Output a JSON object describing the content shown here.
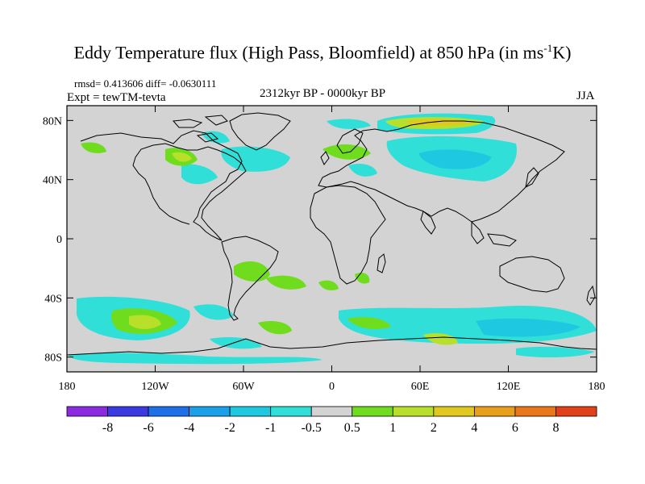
{
  "title_main": "Eddy Temperature flux (High Pass, Bloomfield) at 850 hPa (in ms",
  "title_sup": "-1",
  "title_tail": "K)",
  "stats": "rmsd= 0.413606 diff= -0.0630111",
  "experiment": "Expt = tewTM-tevta",
  "period": "2312kyr BP - 0000kyr BP",
  "season": "JJA",
  "map": {
    "lon_range": [
      -180,
      180
    ],
    "lat_range": [
      -90,
      90
    ],
    "x_ticks": [
      {
        "value": -180,
        "label": "180"
      },
      {
        "value": -120,
        "label": "120W"
      },
      {
        "value": -60,
        "label": "60W"
      },
      {
        "value": 0,
        "label": "0"
      },
      {
        "value": 60,
        "label": "60E"
      },
      {
        "value": 120,
        "label": "120E"
      },
      {
        "value": 180,
        "label": "180"
      }
    ],
    "y_ticks": [
      {
        "value": 80,
        "label": "80N"
      },
      {
        "value": 40,
        "label": "40N"
      },
      {
        "value": 0,
        "label": "0"
      },
      {
        "value": -40,
        "label": "40S"
      },
      {
        "value": -80,
        "label": "80S"
      }
    ],
    "background_color": "#d3d3d3"
  },
  "colorbar": {
    "colors": [
      "#8a2be2",
      "#3a3ae0",
      "#1f6fe8",
      "#1aa0e8",
      "#1ec8e0",
      "#30e0d8",
      "#d3d3d3",
      "#6fdc1e",
      "#b8e02a",
      "#e0c81e",
      "#e8a01a",
      "#e8781a",
      "#e0401a"
    ],
    "labels": [
      "-8",
      "-6",
      "-4",
      "-2",
      "-1",
      "-0.5",
      "0.5",
      "1",
      "2",
      "4",
      "6",
      "8"
    ]
  }
}
